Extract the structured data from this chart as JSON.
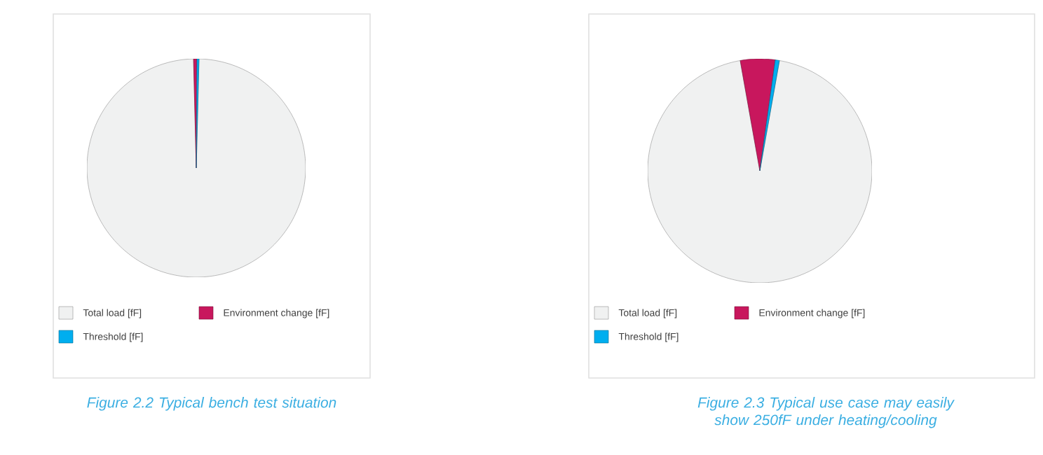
{
  "chart_data": [
    {
      "type": "pie",
      "categories": [
        "Total load [fF]",
        "Environment change [fF]",
        "Threshold [fF]"
      ],
      "values": [
        99.2,
        0.5,
        0.3
      ],
      "colors": [
        "#f0f1f1",
        "#c8175d",
        "#00aeef"
      ],
      "legend": "bottom",
      "annotations": [
        "Figure 2.2 Typical bench test situation"
      ]
    },
    {
      "type": "pie",
      "categories": [
        "Total load [fF]",
        "Environment change [fF]",
        "Threshold [fF]"
      ],
      "values": [
        94.4,
        5.0,
        0.6
      ],
      "colors": [
        "#f0f1f1",
        "#c8175d",
        "#00aeef"
      ],
      "legend": "bottom",
      "annotations": [
        "Figure 2.3 Typical use case may easily show 250fF under heating/cooling"
      ]
    }
  ]
}
